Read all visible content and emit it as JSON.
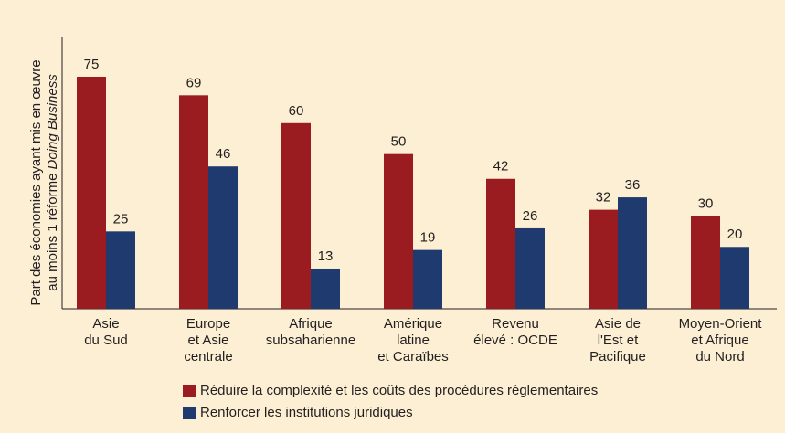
{
  "chart_data": {
    "type": "grouped-bar",
    "y_label": [
      "Part des économies ayant mis en œuvre",
      "au moins 1 réforme",
      "Doing Business"
    ],
    "categories": [
      [
        "Asie",
        "du Sud"
      ],
      [
        "Europe",
        "et Asie",
        "centrale"
      ],
      [
        "Afrique",
        "subsaharienne"
      ],
      [
        "Amérique",
        "latine",
        "et Caraïbes"
      ],
      [
        "Revenu",
        "élevé : OCDE"
      ],
      [
        "Asie de",
        "l'Est et",
        "Pacifique"
      ],
      [
        "Moyen-Orient",
        "et Afrique",
        "du Nord"
      ]
    ],
    "series": [
      {
        "name": "Réduire la complexité et les coûts des procédures réglementaires",
        "color": "#9b1c20",
        "values": [
          75,
          69,
          60,
          50,
          42,
          32,
          30
        ]
      },
      {
        "name": "Renforcer les institutions juridiques",
        "color": "#1f3a6e",
        "values": [
          25,
          46,
          13,
          19,
          26,
          36,
          20
        ]
      }
    ]
  }
}
